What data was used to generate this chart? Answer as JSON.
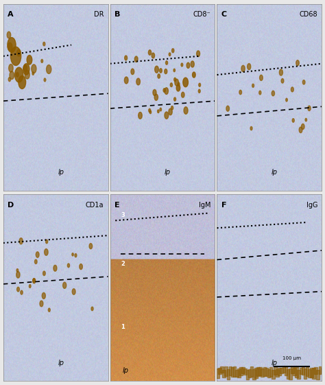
{
  "figure_bg": "#f0f0f0",
  "panels": [
    {
      "label": "A",
      "stain": "DR",
      "row": 0,
      "col": 0
    },
    {
      "label": "B",
      "stain": "CD8",
      "row": 0,
      "col": 1
    },
    {
      "label": "C",
      "stain": "CD68",
      "row": 0,
      "col": 2
    },
    {
      "label": "D",
      "stain": "CD1a",
      "row": 1,
      "col": 0
    },
    {
      "label": "E",
      "stain": "IgM",
      "row": 1,
      "col": 1
    },
    {
      "label": "F",
      "stain": "IgG",
      "row": 1,
      "col": 2
    }
  ],
  "bg_color_main": "#c8cfe0",
  "bg_color_warm": "#d4b896",
  "lp_label": "lp",
  "scalebar_text": "100 μm",
  "panel_border_color": "#888888",
  "stain_color": "#8B5A00",
  "arrow_color": "#ffffff",
  "dashed_color": "#1a1a1a",
  "title_fontsize": 7,
  "label_fontsize": 8,
  "lp_fontsize": 7
}
